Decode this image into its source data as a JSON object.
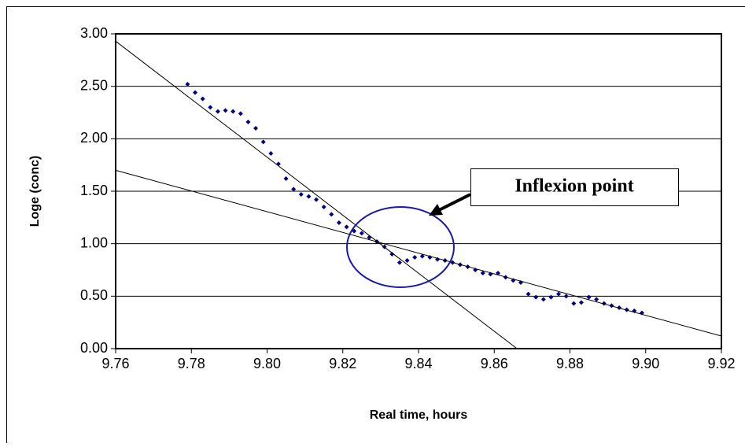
{
  "chart_data": {
    "type": "scatter",
    "xlabel": "Real time, hours",
    "ylabel": "Loge (conc)",
    "annotation": "Inflexion point",
    "x": [
      9.779,
      9.781,
      9.783,
      9.785,
      9.787,
      9.789,
      9.791,
      9.793,
      9.795,
      9.797,
      9.799,
      9.801,
      9.803,
      9.805,
      9.807,
      9.809,
      9.811,
      9.813,
      9.815,
      9.817,
      9.819,
      9.821,
      9.823,
      9.825,
      9.827,
      9.829,
      9.831,
      9.833,
      9.835,
      9.837,
      9.839,
      9.841,
      9.843,
      9.845,
      9.847,
      9.849,
      9.851,
      9.853,
      9.855,
      9.857,
      9.859,
      9.861,
      9.863,
      9.865,
      9.867,
      9.869,
      9.871,
      9.873,
      9.875,
      9.877,
      9.879,
      9.881,
      9.883,
      9.885,
      9.887,
      9.889,
      9.891,
      9.893,
      9.895,
      9.897,
      9.899
    ],
    "values": [
      2.52,
      2.44,
      2.38,
      2.3,
      2.26,
      2.27,
      2.26,
      2.24,
      2.16,
      2.1,
      1.97,
      1.86,
      1.76,
      1.62,
      1.52,
      1.47,
      1.45,
      1.42,
      1.35,
      1.28,
      1.2,
      1.16,
      1.12,
      1.1,
      1.06,
      1.02,
      0.97,
      0.9,
      0.82,
      0.84,
      0.87,
      0.88,
      0.87,
      0.85,
      0.84,
      0.82,
      0.8,
      0.78,
      0.75,
      0.72,
      0.71,
      0.72,
      0.68,
      0.65,
      0.63,
      0.52,
      0.49,
      0.47,
      0.49,
      0.52,
      0.5,
      0.43,
      0.44,
      0.49,
      0.47,
      0.43,
      0.41,
      0.39,
      0.37,
      0.36,
      0.34
    ],
    "color": "#000080",
    "trendlines": [
      {
        "x": [
          9.76,
          9.866
        ],
        "values": [
          2.93,
          0
        ],
        "color": "#000000"
      },
      {
        "x": [
          9.76,
          9.92
        ],
        "values": [
          1.7,
          0.12
        ],
        "color": "#000000"
      }
    ],
    "xlim": [
      9.76,
      9.92
    ],
    "xticks": [
      9.76,
      9.78,
      {
        "value": 9.8,
        "label": "9.80"
      },
      9.82,
      9.84,
      9.86,
      9.88,
      {
        "value": 9.9,
        "label": "9.90"
      },
      9.92
    ],
    "ylim": [
      0,
      3
    ],
    "yticks": [
      {
        "value": 0,
        "label": "0.00"
      },
      {
        "value": 0.5,
        "label": "0.50"
      },
      {
        "value": 1,
        "label": "1.00"
      },
      {
        "value": 1.5,
        "label": "1.50"
      },
      {
        "value": 2,
        "label": "2.00"
      },
      {
        "value": 2.5,
        "label": "2.50"
      },
      {
        "value": 3,
        "label": "3.00"
      }
    ],
    "grid": true
  }
}
